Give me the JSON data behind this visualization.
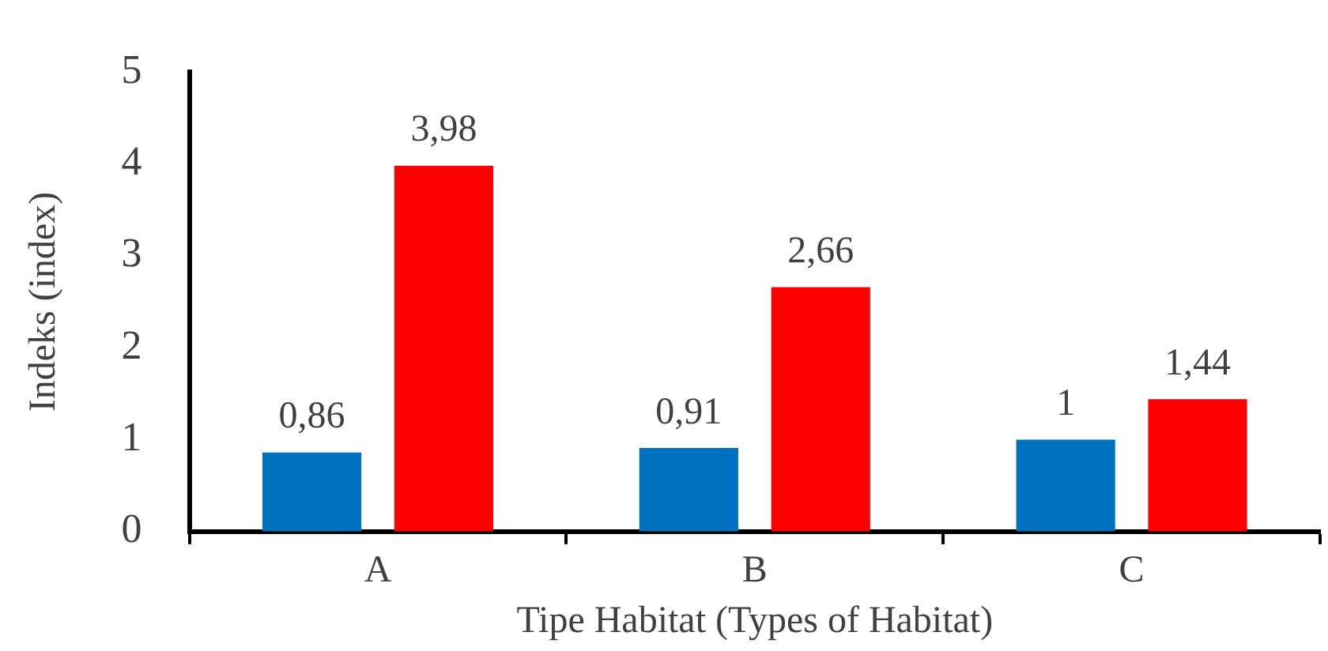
{
  "chart_data": {
    "type": "bar",
    "xlabel": "Tipe Habitat (Types of Habitat)",
    "ylabel": "Indeks (index)",
    "categories": [
      "A",
      "B",
      "C"
    ],
    "series": [
      {
        "color": "#0070c0",
        "values": [
          0.86,
          0.91,
          1
        ],
        "value_labels": [
          "0,86",
          "0,91",
          "1"
        ]
      },
      {
        "color": "#ff0000",
        "values": [
          3.98,
          2.66,
          1.44
        ],
        "value_labels": [
          "3,98",
          "2,66",
          "1,44"
        ]
      }
    ],
    "ylim": [
      0,
      5
    ],
    "yticks": [
      0,
      1,
      2,
      3,
      4,
      5
    ],
    "grid": false,
    "legend": false
  }
}
